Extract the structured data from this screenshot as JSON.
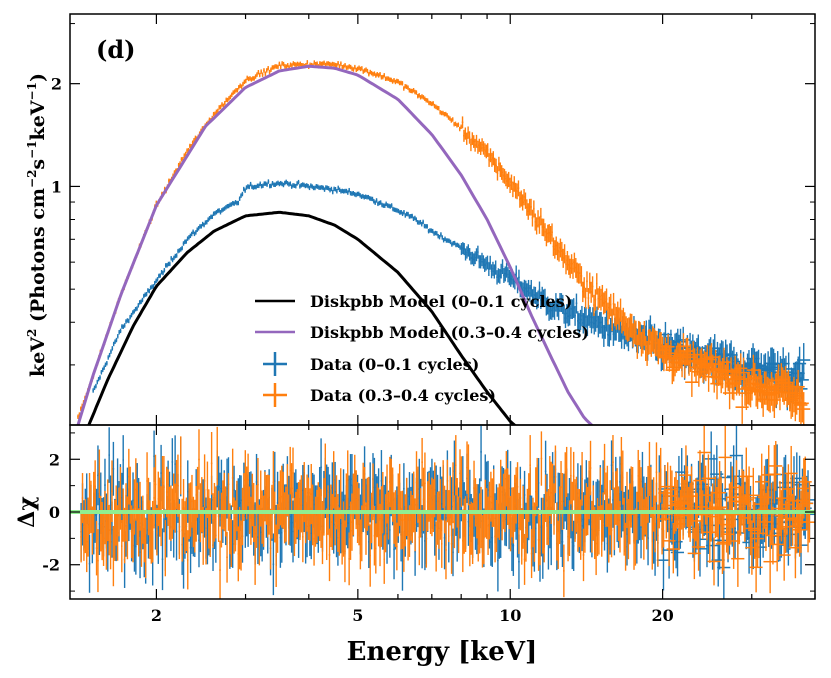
{
  "chart_data": [
    {
      "type": "line",
      "panel_label": "(d)",
      "xlabel": "",
      "ylabel": "keV² (Photons cm⁻²s⁻¹keV⁻¹)",
      "ylabel_parts": {
        "prefix": "keV",
        "mid1": " (Photons cm",
        "mid2": "s",
        "mid3": "keV",
        "end": ")",
        "sup_keV": "2",
        "sup_cm": "−2",
        "sup_s": "−1",
        "sup_keV2": "−1"
      },
      "x_scale": "log",
      "y_scale": "log",
      "xlim": [
        1.35,
        40
      ],
      "ylim": [
        0.2,
        3.2
      ],
      "y_ticks": [
        {
          "value": 1,
          "label": "1"
        },
        {
          "value": 2,
          "label": "2"
        }
      ],
      "series": [
        {
          "name": "Diskpbb Model (0–0.1 cycles)",
          "kind": "model",
          "color": "#000000",
          "x": [
            1.45,
            1.6,
            1.8,
            2.0,
            2.3,
            2.6,
            3.0,
            3.5,
            4.0,
            4.5,
            5.0,
            6.0,
            7.0,
            8.0,
            9.0,
            10.0,
            10.4
          ],
          "y": [
            0.19,
            0.27,
            0.39,
            0.51,
            0.64,
            0.74,
            0.82,
            0.84,
            0.82,
            0.77,
            0.7,
            0.56,
            0.43,
            0.32,
            0.25,
            0.205,
            0.195
          ]
        },
        {
          "name": "Diskpbb Model (0.3–0.4 cycles)",
          "kind": "model",
          "color": "#9467bd",
          "x": [
            1.4,
            1.5,
            1.7,
            2.0,
            2.5,
            3.0,
            3.5,
            4.0,
            4.5,
            5.0,
            6.0,
            7.0,
            8.0,
            9.0,
            10.0,
            11.0,
            12.0,
            13.0,
            14.0,
            15.0
          ],
          "y": [
            0.2,
            0.28,
            0.48,
            0.88,
            1.5,
            1.95,
            2.18,
            2.25,
            2.22,
            2.12,
            1.8,
            1.42,
            1.08,
            0.8,
            0.58,
            0.42,
            0.32,
            0.25,
            0.21,
            0.19
          ]
        },
        {
          "name": "Data (0–0.1 cycles)",
          "kind": "data",
          "color": "#1f77b4",
          "x": [
            1.5,
            1.7,
            2.0,
            2.3,
            2.6,
            2.9,
            3.0,
            3.3,
            3.6,
            4.0,
            4.5,
            5.0,
            5.5,
            6.0,
            6.5,
            7.0,
            8.0,
            9.0,
            10.0,
            11.0,
            12.0,
            14.0,
            16.0,
            18.0,
            20.0,
            23.0,
            27.0,
            31.0,
            35.0,
            38.0
          ],
          "y": [
            0.25,
            0.38,
            0.53,
            0.7,
            0.83,
            0.9,
            0.99,
            1.02,
            1.02,
            1.0,
            0.98,
            0.95,
            0.9,
            0.85,
            0.8,
            0.74,
            0.66,
            0.59,
            0.54,
            0.49,
            0.45,
            0.41,
            0.38,
            0.36,
            0.34,
            0.32,
            0.3,
            0.29,
            0.28,
            0.28
          ]
        },
        {
          "name": "Data (0.3–0.4 cycles)",
          "kind": "data",
          "color": "#ff7f0e",
          "x": [
            1.4,
            1.5,
            1.7,
            2.0,
            2.3,
            2.6,
            3.0,
            3.5,
            4.0,
            4.5,
            5.0,
            5.5,
            6.0,
            7.0,
            8.0,
            9.0,
            10.0,
            11.0,
            12.0,
            13.0,
            14.0,
            16.0,
            18.0,
            20.0,
            23.0,
            27.0,
            31.0,
            35.0,
            38.0
          ],
          "y": [
            0.21,
            0.28,
            0.48,
            0.88,
            1.27,
            1.63,
            2.05,
            2.26,
            2.28,
            2.28,
            2.22,
            2.12,
            2.02,
            1.75,
            1.48,
            1.24,
            1.03,
            0.85,
            0.71,
            0.6,
            0.52,
            0.43,
            0.37,
            0.33,
            0.3,
            0.28,
            0.26,
            0.25,
            0.23
          ]
        }
      ],
      "legend": {
        "placement": "lower-center",
        "entries": [
          {
            "label": "Diskpbb Model (0–0.1 cycles)",
            "style": "line",
            "color": "#000000"
          },
          {
            "label": "Diskpbb Model (0.3–0.4 cycles)",
            "style": "line",
            "color": "#9467bd"
          },
          {
            "label": "Data (0–0.1 cycles)",
            "style": "cross",
            "color": "#1f77b4"
          },
          {
            "label": "Data (0.3–0.4 cycles)",
            "style": "cross",
            "color": "#ff7f0e"
          }
        ]
      }
    },
    {
      "type": "scatter",
      "xlabel": "Energy [keV]",
      "ylabel": "Δχ",
      "x_scale": "log",
      "xlim": [
        1.35,
        40
      ],
      "ylim": [
        -3.3,
        3.3
      ],
      "x_ticks": [
        {
          "value": 2,
          "label": "2"
        },
        {
          "value": 5,
          "label": "5"
        },
        {
          "value": 10,
          "label": "10"
        },
        {
          "value": 20,
          "label": "20"
        }
      ],
      "y_ticks": [
        {
          "value": -2,
          "label": "-2"
        },
        {
          "value": 0,
          "label": "0"
        },
        {
          "value": 2,
          "label": "2"
        }
      ],
      "reference_line": {
        "y": 0,
        "color": "#90ee90"
      },
      "series": [
        {
          "name": "Residuals (0–0.1 cycles)",
          "color": "#1f77b4",
          "spread": 1.0
        },
        {
          "name": "Residuals (0.3–0.4 cycles)",
          "color": "#ff7f0e",
          "spread": 1.0
        }
      ]
    }
  ]
}
